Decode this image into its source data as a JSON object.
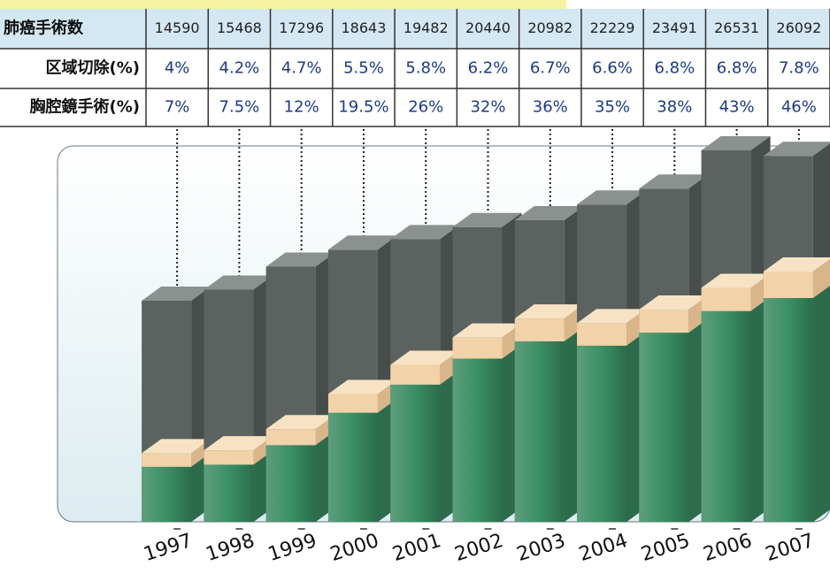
{
  "chart_data": {
    "type": "bar3d",
    "categories": [
      "1997",
      "1998",
      "1999",
      "2000",
      "2001",
      "2002",
      "2003",
      "2004",
      "2005",
      "2006",
      "2007"
    ],
    "series": [
      {
        "name": "肺癌手術数",
        "color": "#5b625f",
        "values": [
          14590,
          15468,
          17296,
          18643,
          19482,
          20440,
          20982,
          22229,
          23491,
          26531,
          26092
        ]
      },
      {
        "name": "区域切除(%)",
        "color": "#f2d2a8",
        "values": [
          4,
          4.2,
          4.7,
          5.5,
          5.8,
          6.2,
          6.7,
          6.6,
          6.8,
          6.8,
          7.8
        ],
        "value_labels": [
          "4%",
          "4.2%",
          "4.7%",
          "5.5%",
          "5.8%",
          "6.2%",
          "6.7%",
          "6.6%",
          "6.8%",
          "6.8%",
          "7.8%"
        ]
      },
      {
        "name": "胸腔鏡手術(%)",
        "color": "#3f9a6e",
        "values": [
          7,
          7.5,
          12,
          19.5,
          26,
          32,
          36,
          35,
          38,
          43,
          46
        ],
        "value_labels": [
          "7%",
          "7.5%",
          "12%",
          "19.5%",
          "26%",
          "32%",
          "36%",
          "35%",
          "38%",
          "43%",
          "46%"
        ]
      }
    ]
  }
}
